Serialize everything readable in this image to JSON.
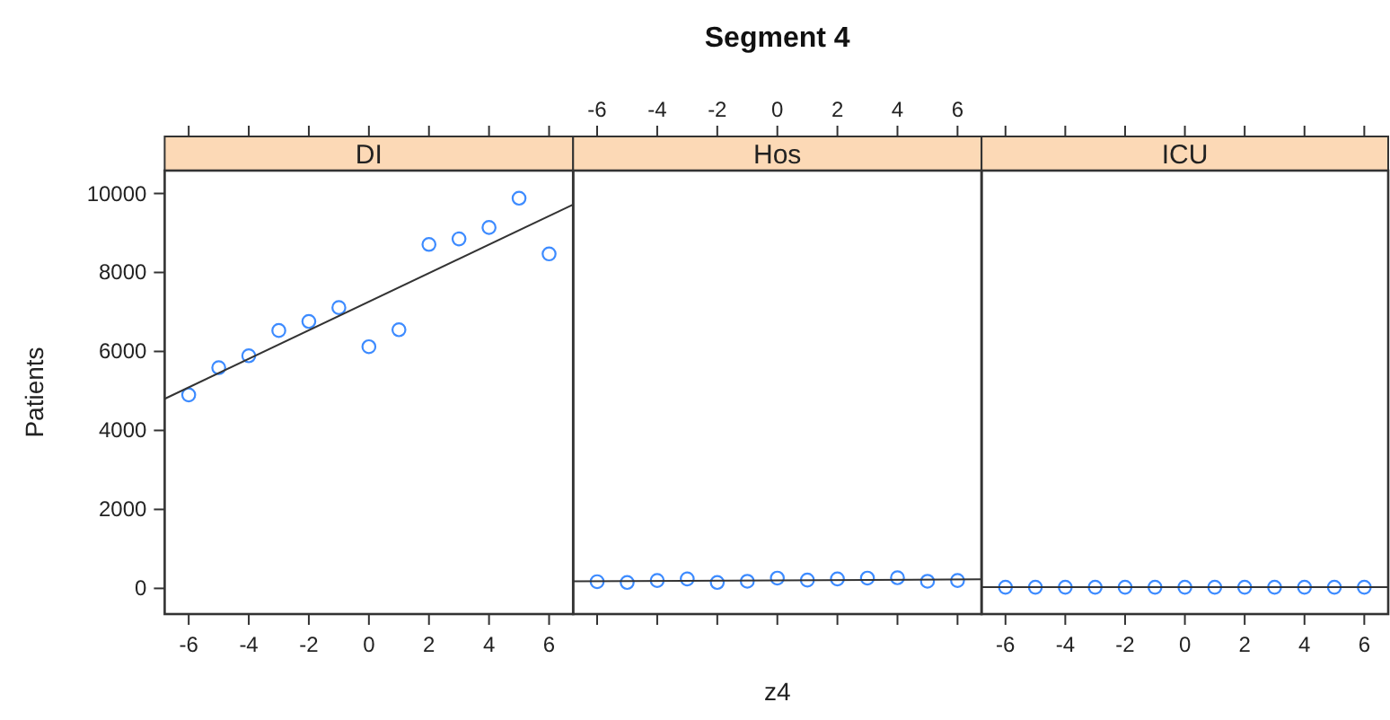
{
  "chart_data": [
    {
      "type": "scatter",
      "title": "DI",
      "ylabel": "Patients",
      "xlim": [
        -6.8,
        6.8
      ],
      "ylim": [
        -650,
        10580
      ],
      "xticks": [
        -6,
        -4,
        -2,
        0,
        2,
        4,
        6
      ],
      "yticks": [
        0,
        2000,
        4000,
        6000,
        8000,
        10000
      ],
      "series": [
        {
          "marker": "circle",
          "color": "#3d8bff",
          "x": [
            -6,
            -5,
            -4,
            -3,
            -2,
            -1,
            0,
            1,
            2,
            3,
            4,
            5,
            6
          ],
          "values": [
            4900,
            5590,
            5890,
            6530,
            6760,
            7110,
            6120,
            6550,
            8710,
            8850,
            9140,
            9880,
            8470
          ]
        },
        {
          "type": "line",
          "color": "#333333",
          "x": [
            -6.8,
            6.8
          ],
          "values": [
            4800,
            9720
          ]
        }
      ]
    },
    {
      "type": "scatter",
      "title": "Hos",
      "xlabel": "z4",
      "annotations": [
        "Segment 4"
      ],
      "tick_labels": "x",
      "xlim": [
        -6.8,
        6.8
      ],
      "ylim": [
        -650,
        10580
      ],
      "xticks": [
        -6,
        -4,
        -2,
        0,
        2,
        4,
        6
      ],
      "series": [
        {
          "marker": "circle",
          "color": "#3d8bff",
          "x": [
            -6,
            -5,
            -4,
            -3,
            -2,
            -1,
            0,
            1,
            2,
            3,
            4,
            5,
            6
          ],
          "values": [
            170,
            150,
            200,
            240,
            150,
            180,
            260,
            210,
            240,
            260,
            270,
            180,
            200
          ]
        },
        {
          "type": "line",
          "color": "#333333",
          "x": [
            -6.8,
            6.8
          ],
          "values": [
            180,
            230
          ]
        }
      ]
    },
    {
      "type": "scatter",
      "title": "ICU",
      "tick_labels": "x",
      "xlim": [
        -6.8,
        6.8
      ],
      "ylim": [
        -650,
        10580
      ],
      "xticks": [
        -6,
        -4,
        -2,
        0,
        2,
        4,
        6
      ],
      "series": [
        {
          "marker": "circle",
          "color": "#3d8bff",
          "x": [
            -6,
            -5,
            -4,
            -3,
            -2,
            -1,
            0,
            1,
            2,
            3,
            4,
            5,
            6
          ],
          "values": [
            30,
            30,
            30,
            30,
            30,
            30,
            30,
            30,
            30,
            30,
            30,
            30,
            30
          ]
        },
        {
          "type": "line",
          "color": "#333333",
          "x": [
            -6.8,
            6.8
          ],
          "values": [
            30,
            30
          ]
        }
      ]
    }
  ]
}
